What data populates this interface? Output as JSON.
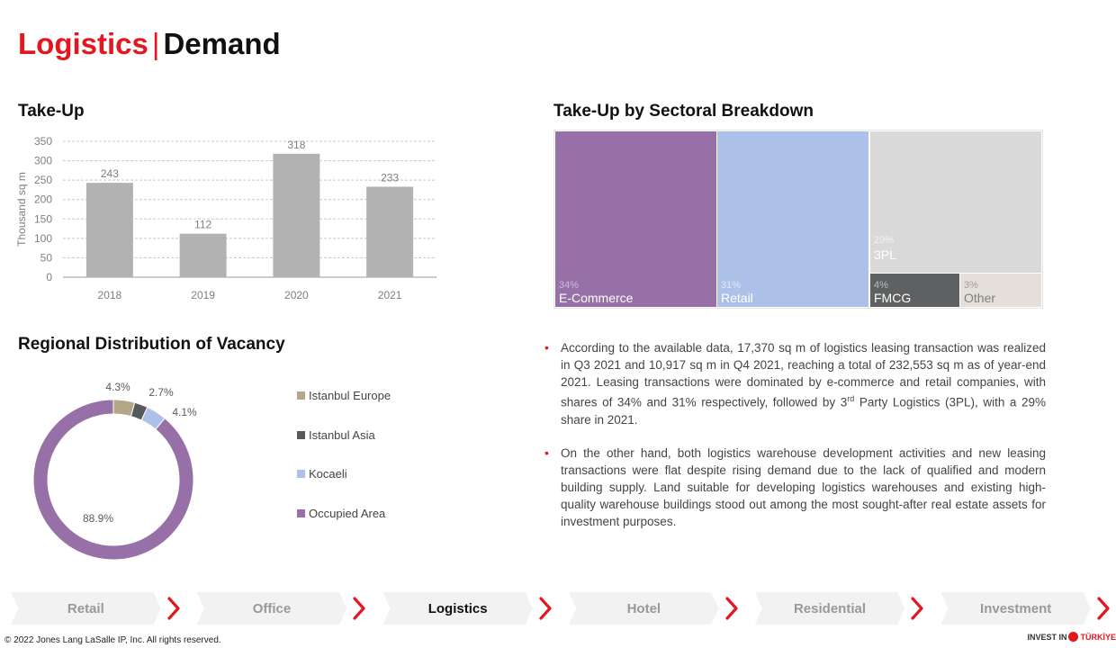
{
  "header": {
    "title_part1": "Logistics",
    "separator": "|",
    "title_part2": "Demand"
  },
  "sections": {
    "takeup_title": "Take-Up",
    "sectoral_title": "Take-Up by Sectoral Breakdown",
    "vacancy_title": "Regional Distribution of Vacancy"
  },
  "chart_data": [
    {
      "type": "bar",
      "title": "Take-Up",
      "categories": [
        "2018",
        "2019",
        "2020",
        "2021"
      ],
      "values": [
        243,
        112,
        318,
        233
      ],
      "data_labels": [
        "243",
        "112",
        "318",
        "233"
      ],
      "ylabel": "Thousand sq m",
      "ylim": [
        0,
        350
      ],
      "yticks": [
        "0",
        "50",
        "100",
        "150",
        "200",
        "250",
        "300",
        "350"
      ],
      "grid": true,
      "colors": {
        "bar": "#b2b2b2",
        "grid": "#c8c8c8",
        "axis": "#999999",
        "text": "#7f7f7f"
      }
    },
    {
      "type": "treemap",
      "title": "Take-Up by Sectoral Breakdown",
      "items": [
        {
          "label": "E-Commerce",
          "pct_label": "34%",
          "value": 34,
          "color": "#9770a8",
          "text_color": "#ffffff",
          "pct_color": "#cdb9dc"
        },
        {
          "label": "Retail",
          "pct_label": "31%",
          "value": 31,
          "color": "#adc1e8",
          "text_color": "#ffffff",
          "pct_color": "#dfe7f7"
        },
        {
          "label": "3PL",
          "pct_label": "29%",
          "value": 29,
          "color": "#d9d9d9",
          "text_color": "#ffffff",
          "pct_color": "#f2f2f2"
        },
        {
          "label": "FMCG",
          "pct_label": "4%",
          "value": 4,
          "color": "#5f6062",
          "text_color": "#ffffff",
          "pct_color": "#bdbdbd"
        },
        {
          "label": "Other",
          "pct_label": "3%",
          "value": 3,
          "color": "#e5dfd9",
          "text_color": "#7f7f7f",
          "pct_color": "#9f9f9f"
        }
      ]
    },
    {
      "type": "pie",
      "title": "Regional Distribution of Vacancy",
      "donut": true,
      "slices": [
        {
          "name": "Istanbul Europe",
          "value": 4.3,
          "label": "4.3%",
          "color": "#b3a689"
        },
        {
          "name": "Istanbul Asia",
          "value": 2.7,
          "label": "2.7%",
          "color": "#58595b"
        },
        {
          "name": "Kocaeli",
          "value": 4.1,
          "label": "4.1%",
          "color": "#adc1e8"
        },
        {
          "name": "Occupied Area",
          "value": 88.9,
          "label": "88.9%",
          "color": "#9770a8"
        }
      ],
      "legend_position": "right"
    }
  ],
  "bullets": [
    {
      "pre": "According to the available data, 17,370 sq m of logistics leasing transaction was realized in Q3 2021 and 10,917 sq m in Q4 2021, reaching a total of 232,553 sq m as of year-end 2021. Leasing transactions were dominated by e-commerce and retail companies, with shares of 34% and 31% respectively, followed by 3",
      "sup": "rd",
      "post": " Party Logistics (3PL), with a 29% share in 2021."
    },
    {
      "pre": "On the other hand, both logistics warehouse development activities and new leasing transactions were flat despite rising demand due to the lack of qualified and modern building supply. Land suitable for developing logistics warehouses and existing high-quality warehouse buildings stood out among the most sought-after real estate assets for investment purposes.",
      "sup": "",
      "post": ""
    }
  ],
  "nav": {
    "items": [
      "Retail",
      "Office",
      "Logistics",
      "Hotel",
      "Residential",
      "Investment"
    ],
    "active_index": 2,
    "arrow": "›"
  },
  "footer": {
    "copyright": "© 2022 Jones Lang LaSalle IP, Inc. All rights reserved.",
    "logo_invest": "INVEST IN",
    "logo_turkiye": "TÜRKİYE"
  },
  "colors": {
    "accent": "#e3171f"
  }
}
